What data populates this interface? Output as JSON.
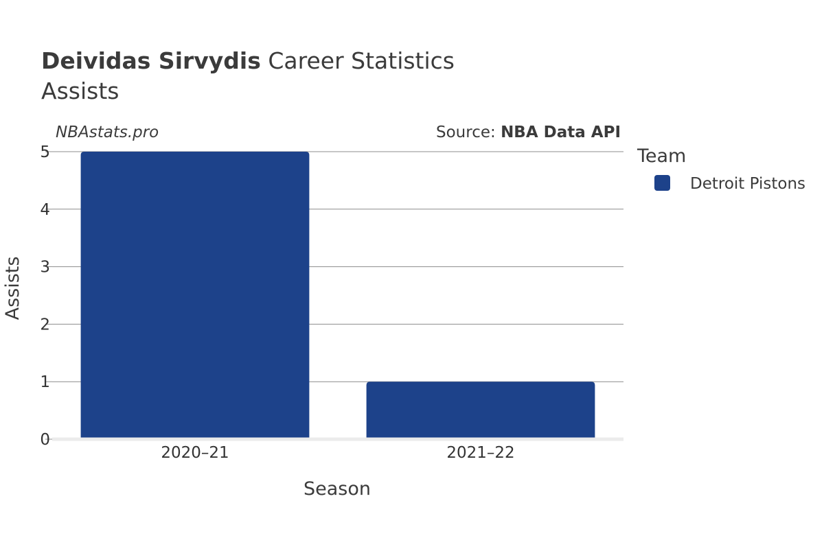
{
  "header": {
    "title_bold": "Deividas Sirvydis",
    "title_rest": " Career Statistics",
    "subtitle": "Assists"
  },
  "watermark": "NBAstats.pro",
  "source": {
    "prefix": "Source: ",
    "name": "NBA Data API"
  },
  "legend": {
    "title": "Team",
    "items": [
      {
        "label": "Detroit Pistons",
        "color": "#1d428a"
      }
    ]
  },
  "chart_data": {
    "type": "bar",
    "categories": [
      "2020–21",
      "2021–22"
    ],
    "series": [
      {
        "name": "Detroit Pistons",
        "values": [
          5,
          1
        ],
        "color": "#1d428a"
      }
    ],
    "xlabel": "Season",
    "ylabel": "Assists",
    "ylim": [
      0,
      5
    ],
    "yticks": [
      0,
      1,
      2,
      3,
      4,
      5
    ],
    "grid": true,
    "legend_position": "right"
  }
}
